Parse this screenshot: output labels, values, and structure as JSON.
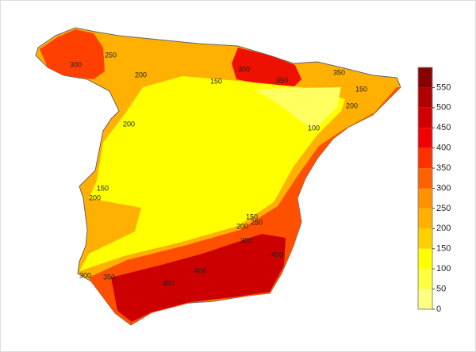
{
  "colorbar": {
    "ticks": [
      0,
      50,
      100,
      150,
      200,
      250,
      300,
      350,
      400,
      450,
      500,
      550
    ],
    "colors": [
      "#ffff80",
      "#ffff40",
      "#ffff00",
      "#ffd000",
      "#ffb000",
      "#ff9000",
      "#ff6000",
      "#ff3000",
      "#f00000",
      "#d00000",
      "#b00000",
      "#880000"
    ]
  },
  "contour_labels": [
    "300",
    "250",
    "200",
    "200",
    "150",
    "300",
    "350",
    "350",
    "150",
    "200",
    "100",
    "150",
    "200",
    "250",
    "300",
    "400",
    "350",
    "400",
    "450",
    "300",
    "150",
    "200"
  ]
}
